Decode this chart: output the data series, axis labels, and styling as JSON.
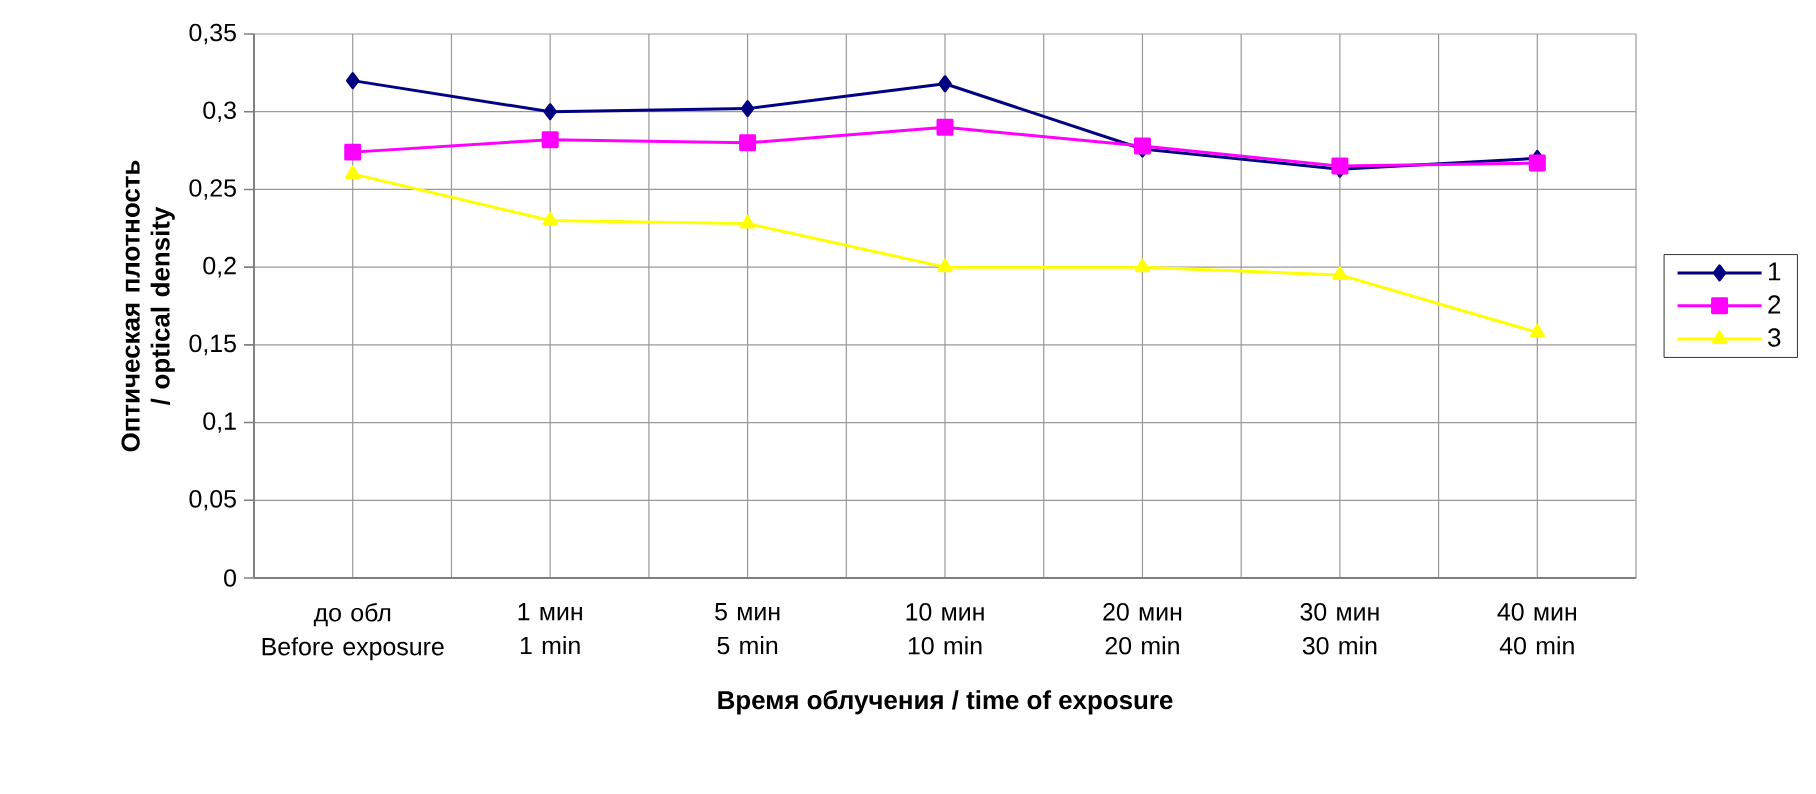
{
  "chart_data": {
    "type": "line",
    "xlabel": "Время облучения / time of exposure",
    "ylabel": "Оптическая плотность / optical density",
    "categories": [
      "до обл\nBefore exposure",
      "1 мин\n1 min",
      "5 мин\n5 min",
      "10 мин\n10 min",
      "20 мин\n20 min",
      "30 мин\n30 min",
      "40 мин\n40 min"
    ],
    "ylim": [
      0,
      0.35
    ],
    "yticks": [
      {
        "value": 0,
        "label": "0"
      },
      {
        "value": 0.05,
        "label": "0,05"
      },
      {
        "value": 0.1,
        "label": "0,1"
      },
      {
        "value": 0.15,
        "label": "0,15"
      },
      {
        "value": 0.2,
        "label": "0,2"
      },
      {
        "value": 0.25,
        "label": "0,25"
      },
      {
        "value": 0.3,
        "label": "0,3"
      },
      {
        "value": 0.35,
        "label": "0,35"
      }
    ],
    "grid": true,
    "legend": "right",
    "series": [
      {
        "name": "1",
        "color": "#000080",
        "marker": "diamond",
        "values": [
          0.32,
          0.3,
          0.302,
          0.318,
          0.276,
          0.263,
          0.27
        ]
      },
      {
        "name": "2",
        "color": "#ff00ff",
        "marker": "square",
        "values": [
          0.274,
          0.282,
          0.28,
          0.29,
          0.278,
          0.265,
          0.267
        ]
      },
      {
        "name": "3",
        "color": "#ffff00",
        "marker": "triangle",
        "values": [
          0.26,
          0.23,
          0.228,
          0.2,
          0.2,
          0.195,
          0.158
        ]
      }
    ]
  }
}
